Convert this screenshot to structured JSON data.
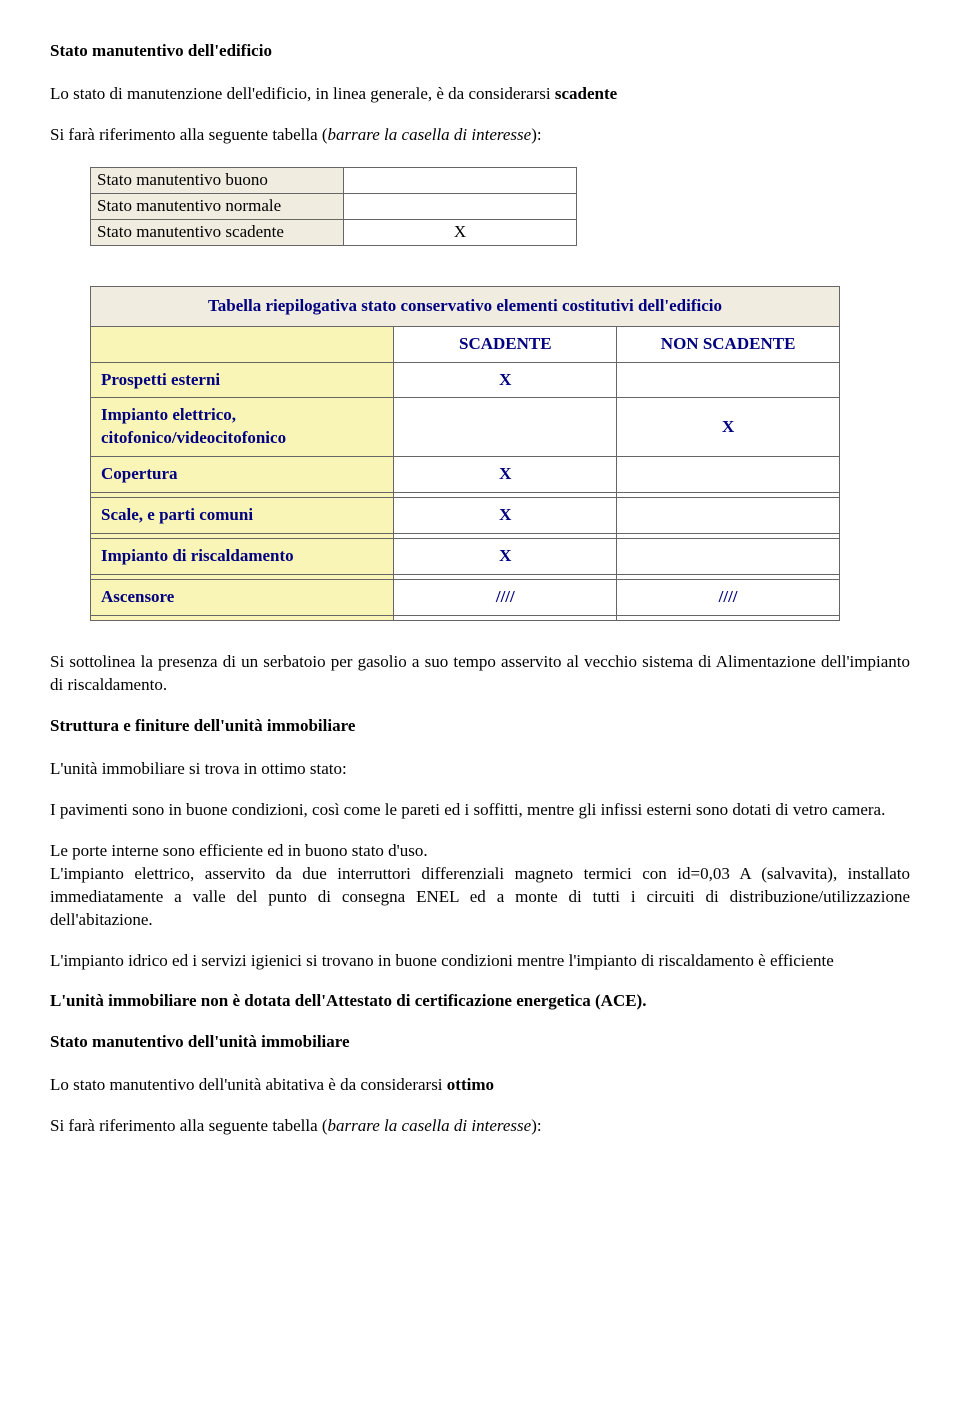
{
  "title1": "Stato manutentivo dell'edificio",
  "intro1_a": "Lo stato di manutenzione dell'edificio, in linea generale, è da considerarsi ",
  "intro1_b": "scadente",
  "intro2_a": "Si farà riferimento alla seguente tabella (",
  "intro2_b": "barrare la casella di interesse",
  "intro2_c": "):",
  "stateTable": {
    "rows": [
      {
        "label": "Stato manutentivo buono",
        "value": ""
      },
      {
        "label": "Stato manutentivo normale",
        "value": ""
      },
      {
        "label": "Stato manutentivo scadente",
        "value": "X"
      }
    ]
  },
  "bigTable": {
    "title": "Tabella riepilogativa stato conservativo elementi costitutivi dell'edificio",
    "col1": "SCADENTE",
    "col2": "NON SCADENTE",
    "rows": [
      {
        "label": "Prospetti esterni",
        "c1": "X",
        "c2": ""
      },
      {
        "label": "Impianto elettrico, citofonico/videocitofonico",
        "c1": "",
        "c2": "X"
      },
      {
        "label": "Copertura",
        "c1": "X",
        "c2": ""
      },
      {
        "label": "Scale, e parti comuni",
        "c1": "X",
        "c2": ""
      },
      {
        "label": "Impianto di riscaldamento",
        "c1": "X",
        "c2": ""
      },
      {
        "label": "Ascensore",
        "c1": "////",
        "c2": "////"
      }
    ]
  },
  "para_serbatoio": "Si sottolinea la presenza di un serbatoio per gasolio a suo tempo asservito al vecchio sistema di Alimentazione dell'impianto di riscaldamento.",
  "title2": "Struttura e finiture dell'unità immobiliare",
  "para_ottimo": "L'unità immobiliare si trova in ottimo stato:",
  "para_pavimenti": "I pavimenti sono in buone condizioni, così come le pareti ed i soffitti, mentre gli infissi esterni sono dotati di vetro camera.",
  "para_porte": "Le porte interne sono efficiente ed in buono stato d'uso.",
  "para_elettrico": "L'impianto elettrico, asservito da due interruttori differenziali magneto termici con id=0,03 A (salvavita), installato immediatamente a valle del punto di consegna ENEL ed a monte di tutti i circuiti di distribuzione/utilizzazione dell'abitazione.",
  "para_idrico": "L'impianto idrico ed i servizi igienici si trovano in buone condizioni mentre l'impianto di riscaldamento è efficiente",
  "para_ace": "L'unità immobiliare  non  è dotata dell'Attestato di certificazione energetica (ACE).",
  "title3": "Stato manutentivo dell'unità immobiliare",
  "para_unit_a": "Lo stato manutentivo dell'unità abitativa è da considerarsi ",
  "para_unit_b": "ottimo",
  "intro3_a": "Si farà riferimento alla seguente tabella (",
  "intro3_b": "barrare la casella di interesse",
  "intro3_c": "):"
}
